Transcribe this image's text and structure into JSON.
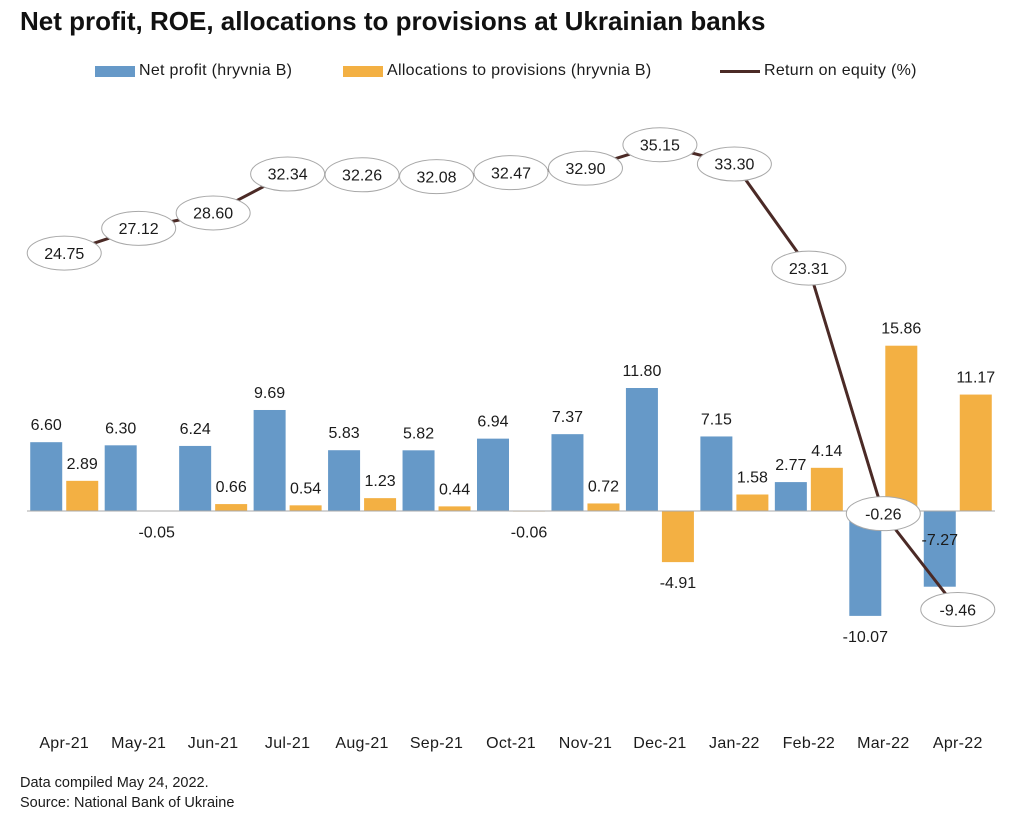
{
  "chart_data": {
    "type": "bar",
    "title": "Net profit, ROE, allocations to provisions at Ukrainian banks",
    "categories": [
      "Apr-21",
      "May-21",
      "Jun-21",
      "Jul-21",
      "Aug-21",
      "Sep-21",
      "Oct-21",
      "Nov-21",
      "Dec-21",
      "Jan-22",
      "Feb-22",
      "Mar-22",
      "Apr-22"
    ],
    "series": [
      {
        "name": "Net profit (hryvnia B)",
        "type": "bar",
        "color": "#6699c8",
        "values": [
          6.6,
          6.3,
          6.24,
          9.69,
          5.83,
          5.82,
          6.94,
          7.37,
          11.8,
          7.15,
          2.77,
          -10.07,
          -7.27
        ]
      },
      {
        "name": "Allocations to provisions (hryvnia B)",
        "type": "bar",
        "color": "#f3b043",
        "values": [
          2.89,
          -0.05,
          0.66,
          0.54,
          1.23,
          0.44,
          -0.06,
          0.72,
          -4.91,
          1.58,
          4.14,
          15.86,
          11.17
        ]
      },
      {
        "name": "Return on equity (%)",
        "type": "line",
        "color": "#4b2a26",
        "values": [
          24.75,
          27.12,
          28.6,
          32.34,
          32.26,
          32.08,
          32.47,
          32.9,
          35.15,
          33.3,
          23.31,
          -0.26,
          -9.46
        ]
      }
    ],
    "ylim": [
      -12,
      38
    ],
    "grid": false,
    "legend": "top"
  },
  "footer": {
    "note": "Data compiled May 24, 2022.",
    "source": "Source: National Bank of Ukraine"
  }
}
